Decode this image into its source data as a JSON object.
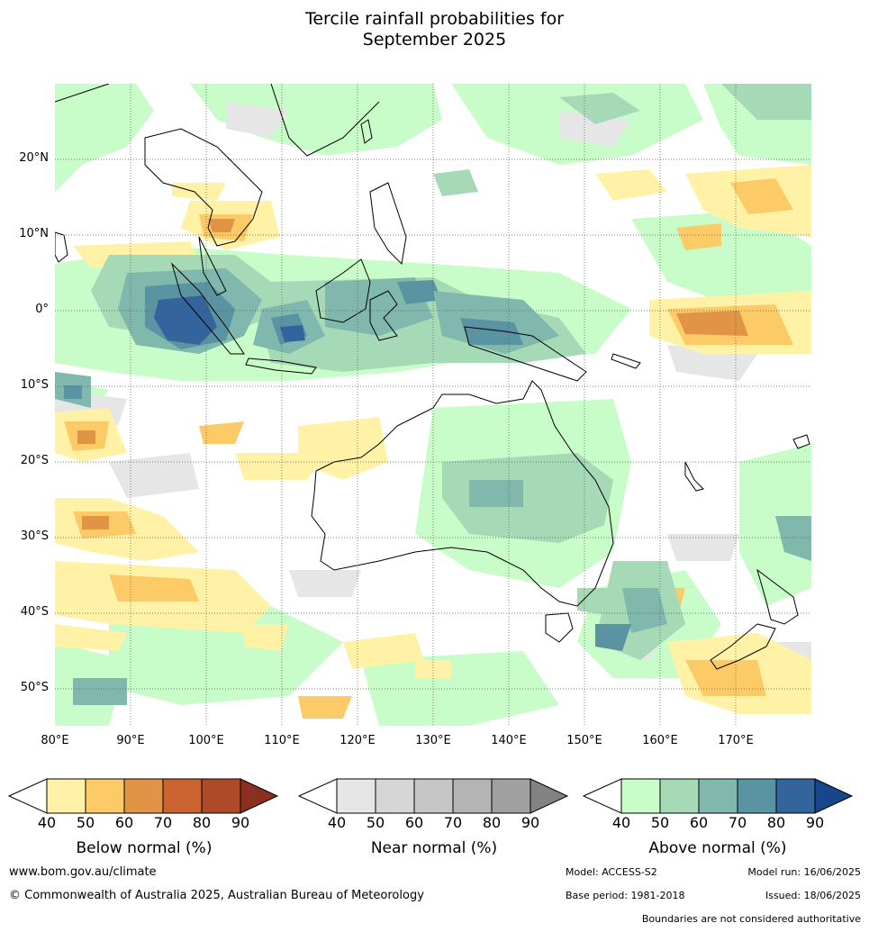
{
  "title": {
    "line1": "Tercile rainfall probabilities for",
    "line2": "September 2025"
  },
  "map": {
    "lat_labels": [
      "20°N",
      "10°N",
      "0°",
      "10°S",
      "20°S",
      "30°S",
      "40°S",
      "50°S"
    ],
    "lon_labels": [
      "80°E",
      "90°E",
      "100°E",
      "110°E",
      "120°E",
      "130°E",
      "140°E",
      "150°E",
      "160°E",
      "170°E"
    ],
    "lat_range": [
      -55,
      30
    ],
    "lon_range": [
      80,
      180
    ],
    "gridlines": "dotted"
  },
  "legend": {
    "ticks": [
      "40",
      "50",
      "60",
      "70",
      "80",
      "90"
    ],
    "below": {
      "title": "Below normal (%)",
      "colors": [
        "#fff2a6",
        "#fdca68",
        "#e29446",
        "#cc6432",
        "#af4a28",
        "#8a3020"
      ]
    },
    "near": {
      "title": "Near normal (%)",
      "colors": [
        "#e6e6e6",
        "#d6d6d6",
        "#c6c6c6",
        "#b4b4b4",
        "#a0a0a0",
        "#828282"
      ]
    },
    "above": {
      "title": "Above normal (%)",
      "colors": [
        "#c8fcc8",
        "#a6d9b6",
        "#80b8ae",
        "#5a93a2",
        "#33659c",
        "#16478a"
      ]
    }
  },
  "footer": {
    "website": "www.bom.gov.au/climate",
    "copyright": "© Commonwealth of Australia 2025, Australian Bureau of Meteorology",
    "model": "Model: ACCESS-S2",
    "model_run": "Model run: 16/06/2025",
    "base_period": "Base period: 1981-2018",
    "issued": "Issued: 18/06/2025",
    "disclaimer": "Boundaries are not considered authoritative"
  }
}
